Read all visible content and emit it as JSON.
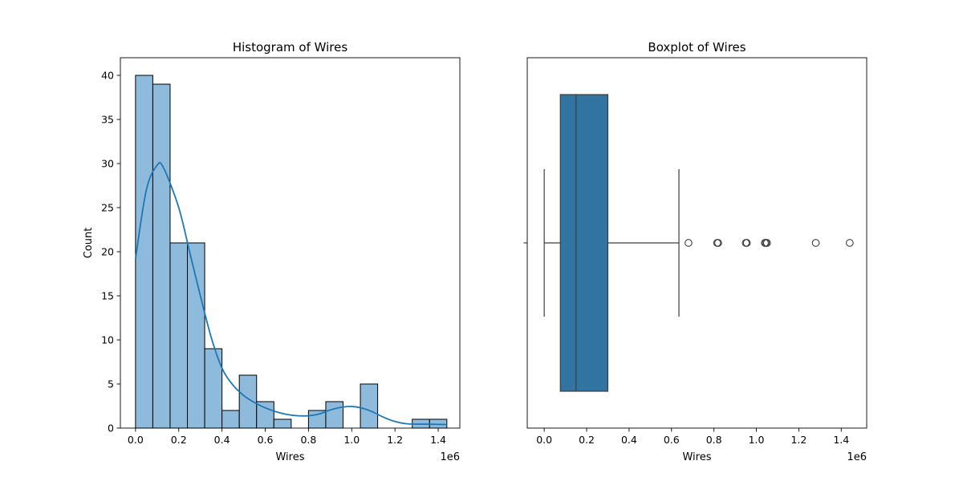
{
  "chart_data": [
    {
      "type": "bar",
      "title": "Histogram of Wires",
      "xlabel": "Wires",
      "ylabel": "Count",
      "x_offset_label": "1e6",
      "xlim": [
        -0.07,
        1.5
      ],
      "ylim": [
        0,
        42
      ],
      "x_ticks": [
        0.0,
        0.2,
        0.4,
        0.6,
        0.8,
        1.0,
        1.2,
        1.4
      ],
      "x_tick_labels": [
        "0.0",
        "0.2",
        "0.4",
        "0.6",
        "0.8",
        "1.0",
        "1.2",
        "1.4"
      ],
      "y_ticks": [
        0,
        5,
        10,
        15,
        20,
        25,
        30,
        35,
        40
      ],
      "y_tick_labels": [
        "0",
        "5",
        "10",
        "15",
        "20",
        "25",
        "30",
        "35",
        "40"
      ],
      "bin_edges": [
        0.0,
        0.08,
        0.16,
        0.24,
        0.32,
        0.4,
        0.48,
        0.56,
        0.64,
        0.72,
        0.8,
        0.88,
        0.96,
        1.04,
        1.12,
        1.2,
        1.28,
        1.36,
        1.44
      ],
      "counts": [
        40,
        39,
        21,
        21,
        9,
        2,
        6,
        3,
        1,
        0,
        2,
        3,
        0,
        5,
        0,
        0,
        1,
        1
      ],
      "bar_color": "#8ebadb",
      "kde_color": "#1f77b4",
      "kde": {
        "x": [
          0.0,
          0.05,
          0.1,
          0.13,
          0.2,
          0.25,
          0.3,
          0.35,
          0.4,
          0.45,
          0.5,
          0.55,
          0.6,
          0.65,
          0.7,
          0.75,
          0.8,
          0.85,
          0.9,
          0.95,
          1.0,
          1.05,
          1.1,
          1.15,
          1.2,
          1.25,
          1.3,
          1.35,
          1.4,
          1.44
        ],
        "y": [
          19.2,
          27.0,
          29.8,
          29.5,
          25.0,
          20.0,
          15.0,
          10.3,
          6.8,
          4.9,
          3.7,
          2.9,
          2.3,
          1.85,
          1.55,
          1.4,
          1.4,
          1.6,
          2.05,
          2.35,
          2.45,
          2.25,
          1.8,
          1.2,
          0.75,
          0.5,
          0.45,
          0.45,
          0.42,
          0.4
        ]
      }
    },
    {
      "type": "boxplot",
      "title": "Boxplot of Wires",
      "xlabel": "Wires",
      "x_offset_label": "1e6",
      "xlim": [
        -0.08,
        1.52
      ],
      "x_ticks": [
        0.0,
        0.2,
        0.4,
        0.6,
        0.8,
        1.0,
        1.2,
        1.4
      ],
      "x_tick_labels": [
        "0.0",
        "0.2",
        "0.4",
        "0.6",
        "0.8",
        "1.0",
        "1.2",
        "1.4"
      ],
      "whisker_low": 0.0,
      "q1": 0.076,
      "median": 0.15,
      "q3": 0.3,
      "whisker_high": 0.635,
      "outliers": [
        0.68,
        0.815,
        0.82,
        0.95,
        0.955,
        1.04,
        1.045,
        1.05,
        1.28,
        1.44
      ],
      "box_color": "#3274a1"
    }
  ]
}
